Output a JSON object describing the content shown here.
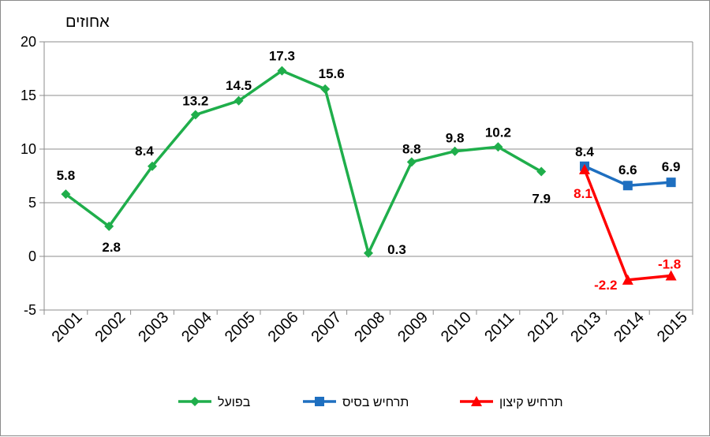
{
  "chart_data": {
    "type": "line",
    "ylabel": "אחוזים",
    "xlabel": "",
    "ylim": [
      -5,
      20
    ],
    "yticks": [
      -5,
      0,
      5,
      10,
      15,
      20
    ],
    "grid": true,
    "legend_position": "bottom",
    "categories": [
      "2001",
      "2002",
      "2003",
      "2004",
      "2005",
      "2006",
      "2007",
      "2008",
      "2009",
      "2010",
      "2011",
      "2012",
      "2013",
      "2014",
      "2015"
    ],
    "series": [
      {
        "name": "בפועל",
        "color": "#1fae4b",
        "marker": "diamond",
        "x": [
          "2001",
          "2002",
          "2003",
          "2004",
          "2005",
          "2006",
          "2007",
          "2008",
          "2009",
          "2010",
          "2011",
          "2012"
        ],
        "values": [
          5.8,
          2.8,
          8.4,
          13.2,
          14.5,
          17.3,
          15.6,
          0.3,
          8.8,
          9.8,
          10.2,
          7.9
        ],
        "labels": [
          "5.8",
          "2.8",
          "8.4",
          "13.2",
          "14.5",
          "17.3",
          "15.6",
          "0.3",
          "8.8",
          "9.8",
          "10.2",
          "7.9"
        ]
      },
      {
        "name": "תרחיש בסיס",
        "color": "#1e6fc0",
        "marker": "square",
        "x": [
          "2013",
          "2014",
          "2015"
        ],
        "values": [
          8.4,
          6.6,
          6.9
        ],
        "labels": [
          "8.4",
          "6.6",
          "6.9"
        ]
      },
      {
        "name": "תרחיש קיצון",
        "color": "#ff0000",
        "marker": "triangle",
        "x": [
          "2013",
          "2014",
          "2015"
        ],
        "values": [
          8.1,
          -2.2,
          -1.8
        ],
        "labels": [
          "8.1",
          "-2.2",
          "-1.8"
        ]
      }
    ]
  }
}
